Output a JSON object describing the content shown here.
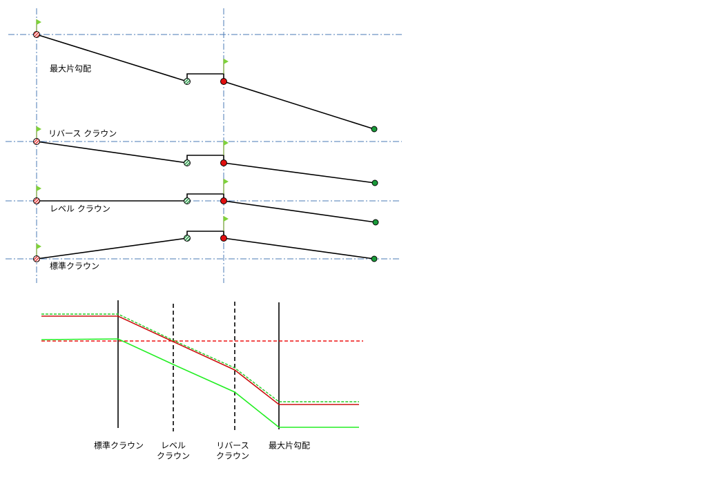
{
  "sections": [
    {
      "label": "最大片勾配"
    },
    {
      "label": "リバース クラウン"
    },
    {
      "label": "レベル クラウン"
    },
    {
      "label": "標準クラウン"
    }
  ],
  "transition_labels": [
    {
      "lines": [
        "標準クラウン"
      ]
    },
    {
      "lines": [
        "レベル",
        "クラウン"
      ]
    },
    {
      "lines": [
        "リバース",
        "クラウン"
      ]
    },
    {
      "lines": [
        "最大片勾配"
      ]
    }
  ]
}
